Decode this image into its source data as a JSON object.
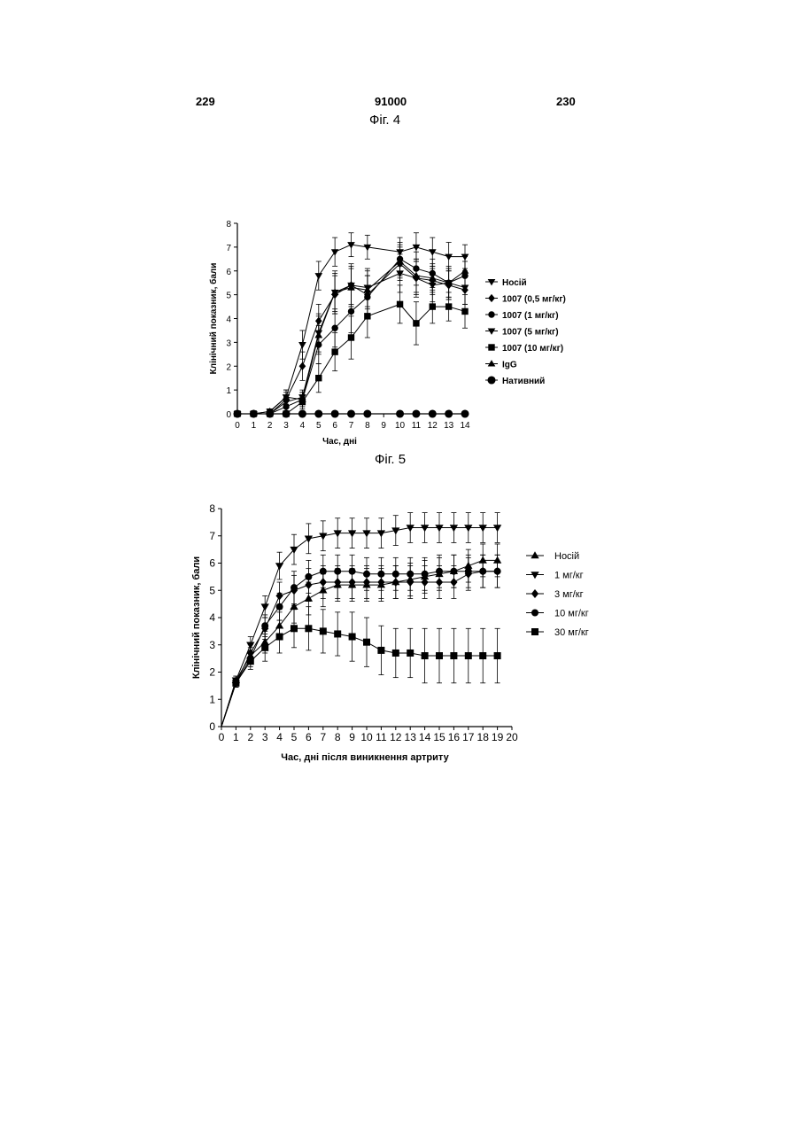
{
  "header": {
    "left_page": "229",
    "patent_number": "91000",
    "right_page": "230"
  },
  "figures": {
    "fig4_caption": "Фіг. 4",
    "fig5_caption": "Фіг. 5"
  },
  "chart_data": [
    {
      "type": "line",
      "title": "",
      "xlabel": "Час, дні",
      "ylabel": "Клінічний показник, бали",
      "xlim": [
        0,
        14
      ],
      "ylim": [
        0,
        8
      ],
      "x_ticks": [
        0,
        1,
        2,
        3,
        4,
        5,
        6,
        7,
        8,
        9,
        10,
        11,
        12,
        13,
        14
      ],
      "y_ticks": [
        0,
        1,
        2,
        3,
        4,
        5,
        6,
        7,
        8
      ],
      "error_bars": true,
      "legend_position": "right",
      "series": [
        {
          "name": "Носій",
          "marker": "triangle-down",
          "x": [
            0,
            1,
            2,
            3,
            4,
            5,
            6,
            7,
            8,
            10,
            11,
            12,
            13,
            14
          ],
          "y": [
            0,
            0,
            0.1,
            0.7,
            2.9,
            5.8,
            6.8,
            7.1,
            7.0,
            6.8,
            7.0,
            6.8,
            6.6,
            6.6
          ],
          "err": [
            0,
            0,
            0.1,
            0.3,
            0.6,
            0.6,
            0.6,
            0.5,
            0.5,
            0.6,
            0.6,
            0.6,
            0.6,
            0.5
          ]
        },
        {
          "name": "1007 (0,5 мг/кг)",
          "marker": "diamond",
          "x": [
            0,
            1,
            2,
            3,
            4,
            5,
            6,
            7,
            8,
            10,
            11,
            12,
            13,
            14
          ],
          "y": [
            0,
            0,
            0,
            0.6,
            2.0,
            3.9,
            5.0,
            5.4,
            5.0,
            6.3,
            5.7,
            5.6,
            5.4,
            5.2
          ],
          "err": [
            0,
            0,
            0,
            0.3,
            0.6,
            0.7,
            0.8,
            0.8,
            0.8,
            0.7,
            0.7,
            0.6,
            0.6,
            0.6
          ]
        },
        {
          "name": "1007 (1 мг/кг)",
          "marker": "circle",
          "x": [
            0,
            1,
            2,
            3,
            4,
            5,
            6,
            7,
            8,
            10,
            11,
            12,
            13,
            14
          ],
          "y": [
            0,
            0,
            0,
            0.3,
            0.6,
            2.9,
            3.6,
            4.3,
            4.9,
            6.5,
            6.1,
            5.9,
            5.5,
            5.8
          ],
          "err": [
            0,
            0,
            0,
            0.2,
            0.3,
            0.8,
            0.8,
            0.9,
            0.9,
            0.7,
            0.7,
            0.6,
            0.6,
            0.6
          ]
        },
        {
          "name": "1007 (5 мг/кг)",
          "marker": "triangle-down",
          "x": [
            0,
            1,
            2,
            3,
            4,
            5,
            6,
            7,
            8,
            10,
            11,
            12,
            13,
            14
          ],
          "y": [
            0,
            0,
            0,
            0.5,
            0.7,
            3.4,
            5.1,
            5.4,
            5.3,
            5.9,
            5.7,
            5.4,
            5.5,
            5.3
          ],
          "err": [
            0,
            0,
            0,
            0.2,
            0.3,
            0.8,
            0.9,
            0.9,
            0.8,
            0.8,
            0.8,
            0.7,
            0.7,
            0.7
          ]
        },
        {
          "name": "1007 (10 мг/кг)",
          "marker": "square",
          "x": [
            0,
            1,
            2,
            3,
            4,
            5,
            6,
            7,
            8,
            10,
            11,
            12,
            13,
            14
          ],
          "y": [
            0,
            0,
            0,
            0,
            0.5,
            1.5,
            2.6,
            3.2,
            4.1,
            4.6,
            3.8,
            4.5,
            4.5,
            4.3
          ],
          "err": [
            0,
            0,
            0,
            0,
            0.3,
            0.6,
            0.8,
            0.9,
            0.9,
            0.8,
            0.9,
            0.7,
            0.6,
            0.7
          ]
        },
        {
          "name": "IgG",
          "marker": "triangle-up",
          "x": [
            0,
            1,
            2,
            3,
            4,
            5,
            6,
            7,
            8,
            10,
            11,
            12,
            13,
            14
          ],
          "y": [
            0,
            0,
            0.1,
            0.7,
            0.6,
            3.3,
            5.1,
            5.3,
            5.2,
            6.4,
            5.8,
            5.7,
            5.5,
            6.0
          ],
          "err": [
            0,
            0,
            0.1,
            0.3,
            0.3,
            0.8,
            0.8,
            0.8,
            0.8,
            0.7,
            0.7,
            0.6,
            0.6,
            0.6
          ]
        },
        {
          "name": "Нативний",
          "marker": "circle-large",
          "x": [
            0,
            1,
            2,
            3,
            4,
            5,
            6,
            7,
            8,
            10,
            11,
            12,
            13,
            14
          ],
          "y": [
            0,
            0,
            0,
            0,
            0,
            0,
            0,
            0,
            0,
            0,
            0,
            0,
            0,
            0
          ],
          "err": [
            0,
            0,
            0,
            0,
            0,
            0,
            0,
            0,
            0,
            0,
            0,
            0,
            0,
            0
          ]
        }
      ]
    },
    {
      "type": "line",
      "title": "",
      "xlabel": "Час, дні після виникнення артриту",
      "ylabel": "Клінічний показник, бали",
      "xlim": [
        0,
        20
      ],
      "ylim": [
        0,
        8
      ],
      "x_ticks": [
        0,
        1,
        2,
        3,
        4,
        5,
        6,
        7,
        8,
        9,
        10,
        11,
        12,
        13,
        14,
        15,
        16,
        17,
        18,
        19,
        20
      ],
      "y_ticks": [
        0,
        1,
        2,
        3,
        4,
        5,
        6,
        7,
        8
      ],
      "error_bars": true,
      "legend_position": "right",
      "series": [
        {
          "name": "Носій",
          "marker": "triangle-up",
          "x": [
            0,
            1,
            2,
            3,
            4,
            5,
            6,
            7,
            8,
            9,
            10,
            11,
            12,
            13,
            14,
            15,
            16,
            17,
            18,
            19
          ],
          "y": [
            0,
            1.7,
            2.6,
            3.1,
            3.7,
            4.4,
            4.7,
            5.0,
            5.2,
            5.2,
            5.2,
            5.2,
            5.3,
            5.4,
            5.5,
            5.6,
            5.7,
            5.9,
            6.1,
            6.1
          ],
          "err": [
            0,
            0.15,
            0.3,
            0.4,
            0.5,
            0.6,
            0.6,
            0.6,
            0.6,
            0.6,
            0.6,
            0.6,
            0.6,
            0.6,
            0.6,
            0.6,
            0.6,
            0.6,
            0.6,
            0.6
          ]
        },
        {
          "name": "1 мг/кг",
          "marker": "triangle-down",
          "x": [
            0,
            1,
            2,
            3,
            4,
            5,
            6,
            7,
            8,
            9,
            10,
            11,
            12,
            13,
            14,
            15,
            16,
            17,
            18,
            19
          ],
          "y": [
            0,
            1.7,
            3.0,
            4.4,
            5.9,
            6.5,
            6.9,
            7.0,
            7.1,
            7.1,
            7.1,
            7.1,
            7.2,
            7.3,
            7.3,
            7.3,
            7.3,
            7.3,
            7.3,
            7.3
          ],
          "err": [
            0,
            0.15,
            0.3,
            0.4,
            0.5,
            0.55,
            0.55,
            0.55,
            0.55,
            0.55,
            0.55,
            0.55,
            0.55,
            0.55,
            0.55,
            0.55,
            0.55,
            0.55,
            0.55,
            0.55
          ]
        },
        {
          "name": "3 мг/кг",
          "marker": "diamond",
          "x": [
            0,
            1,
            2,
            3,
            4,
            5,
            6,
            7,
            8,
            9,
            10,
            11,
            12,
            13,
            14,
            15,
            16,
            17,
            18,
            19
          ],
          "y": [
            0,
            1.6,
            2.7,
            3.6,
            4.8,
            5.0,
            5.2,
            5.3,
            5.3,
            5.3,
            5.3,
            5.3,
            5.3,
            5.3,
            5.3,
            5.3,
            5.3,
            5.6,
            5.7,
            5.7
          ],
          "err": [
            0,
            0.15,
            0.3,
            0.4,
            0.5,
            0.55,
            0.6,
            0.6,
            0.6,
            0.6,
            0.6,
            0.6,
            0.6,
            0.6,
            0.6,
            0.6,
            0.6,
            0.6,
            0.6,
            0.6
          ]
        },
        {
          "name": "10 мг/кг",
          "marker": "circle",
          "x": [
            0,
            1,
            2,
            3,
            4,
            5,
            6,
            7,
            8,
            9,
            10,
            11,
            12,
            13,
            14,
            15,
            16,
            17,
            18,
            19
          ],
          "y": [
            0,
            1.6,
            2.5,
            3.7,
            4.4,
            5.1,
            5.5,
            5.7,
            5.7,
            5.7,
            5.6,
            5.6,
            5.6,
            5.6,
            5.6,
            5.7,
            5.7,
            5.7,
            5.7,
            5.7
          ],
          "err": [
            0,
            0.15,
            0.3,
            0.4,
            0.5,
            0.6,
            0.6,
            0.6,
            0.6,
            0.6,
            0.6,
            0.6,
            0.6,
            0.6,
            0.6,
            0.6,
            0.6,
            0.6,
            0.6,
            0.6
          ]
        },
        {
          "name": "30 мг/кг",
          "marker": "square",
          "x": [
            0,
            1,
            2,
            3,
            4,
            5,
            6,
            7,
            8,
            9,
            10,
            11,
            12,
            13,
            14,
            15,
            16,
            17,
            18,
            19
          ],
          "y": [
            0,
            1.6,
            2.4,
            2.9,
            3.3,
            3.6,
            3.6,
            3.5,
            3.4,
            3.3,
            3.1,
            2.8,
            2.7,
            2.7,
            2.6,
            2.6,
            2.6,
            2.6,
            2.6,
            2.6
          ],
          "err": [
            0,
            0.15,
            0.3,
            0.5,
            0.6,
            0.7,
            0.8,
            0.8,
            0.8,
            0.9,
            0.9,
            0.9,
            0.9,
            0.9,
            1.0,
            1.0,
            1.0,
            1.0,
            1.0,
            1.0
          ]
        }
      ]
    }
  ]
}
